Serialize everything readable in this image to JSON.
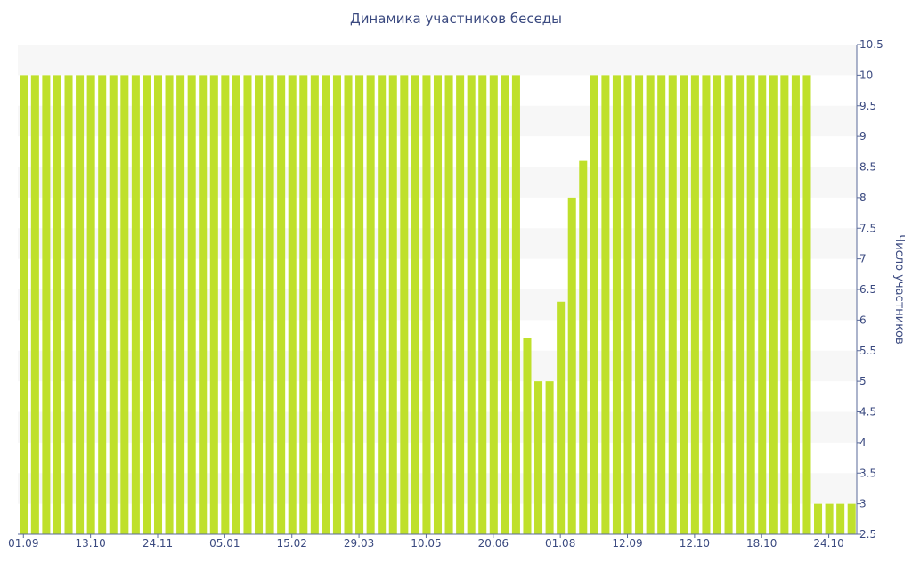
{
  "chart_data": {
    "type": "bar",
    "title": "Динамика участников беседы",
    "xlabel": "",
    "ylabel": "Число участников",
    "ylim": [
      2.5,
      10.5
    ],
    "yticks": [
      2.5,
      3,
      3.5,
      4,
      4.5,
      5,
      5.5,
      6,
      6.5,
      7,
      7.5,
      8,
      8.5,
      9,
      9.5,
      10,
      10.5
    ],
    "y_axis_side": "right",
    "grid": "horizontal alternating bands",
    "bar_color": "#bfe02b",
    "x_tick_labels": [
      {
        "index": 0,
        "label": "01.09"
      },
      {
        "index": 6,
        "label": "13.10"
      },
      {
        "index": 12,
        "label": "24.11"
      },
      {
        "index": 18,
        "label": "05.01"
      },
      {
        "index": 24,
        "label": "15.02"
      },
      {
        "index": 30,
        "label": "29.03"
      },
      {
        "index": 36,
        "label": "10.05"
      },
      {
        "index": 42,
        "label": "20.06"
      },
      {
        "index": 48,
        "label": "01.08"
      },
      {
        "index": 54,
        "label": "12.09"
      },
      {
        "index": 60,
        "label": "12.10"
      },
      {
        "index": 66,
        "label": "18.10"
      },
      {
        "index": 72,
        "label": "24.10"
      }
    ],
    "values": [
      10,
      10,
      10,
      10,
      10,
      10,
      10,
      10,
      10,
      10,
      10,
      10,
      10,
      10,
      10,
      10,
      10,
      10,
      10,
      10,
      10,
      10,
      10,
      10,
      10,
      10,
      10,
      10,
      10,
      10,
      10,
      10,
      10,
      10,
      10,
      10,
      10,
      10,
      10,
      10,
      10,
      10,
      10,
      10,
      10,
      5.7,
      5,
      5,
      6.3,
      8,
      8.6,
      10,
      10,
      10,
      10,
      10,
      10,
      10,
      10,
      10,
      10,
      10,
      10,
      10,
      10,
      10,
      10,
      10,
      10,
      10,
      10,
      3,
      3,
      3,
      3
    ]
  }
}
